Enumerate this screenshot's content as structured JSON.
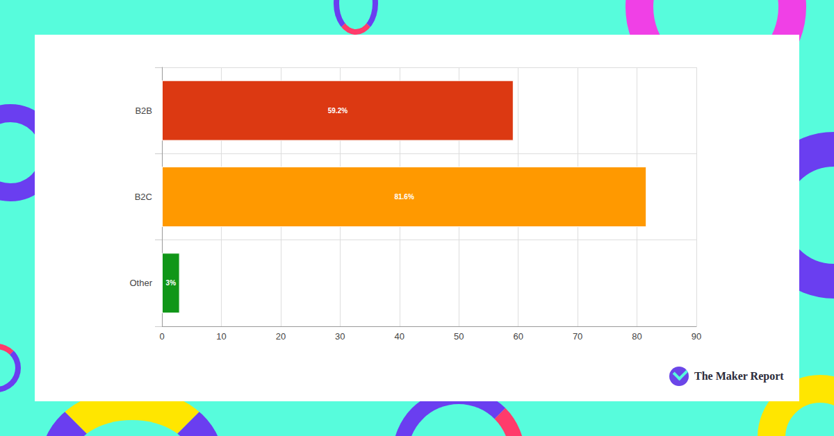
{
  "chart_data": {
    "type": "bar",
    "orientation": "horizontal",
    "categories": [
      "B2B",
      "B2C",
      "Other"
    ],
    "values": [
      59.2,
      81.6,
      3
    ],
    "value_labels": [
      "59.2%",
      "81.6%",
      "3%"
    ],
    "colors": [
      "#dc3912",
      "#ff9900",
      "#109618"
    ],
    "xlim": [
      0,
      90
    ],
    "xticks": [
      0,
      10,
      20,
      30,
      40,
      50,
      60,
      70,
      80,
      90
    ],
    "grid": true,
    "data_labels": true,
    "annotations": [
      "The Maker Report"
    ]
  }
}
